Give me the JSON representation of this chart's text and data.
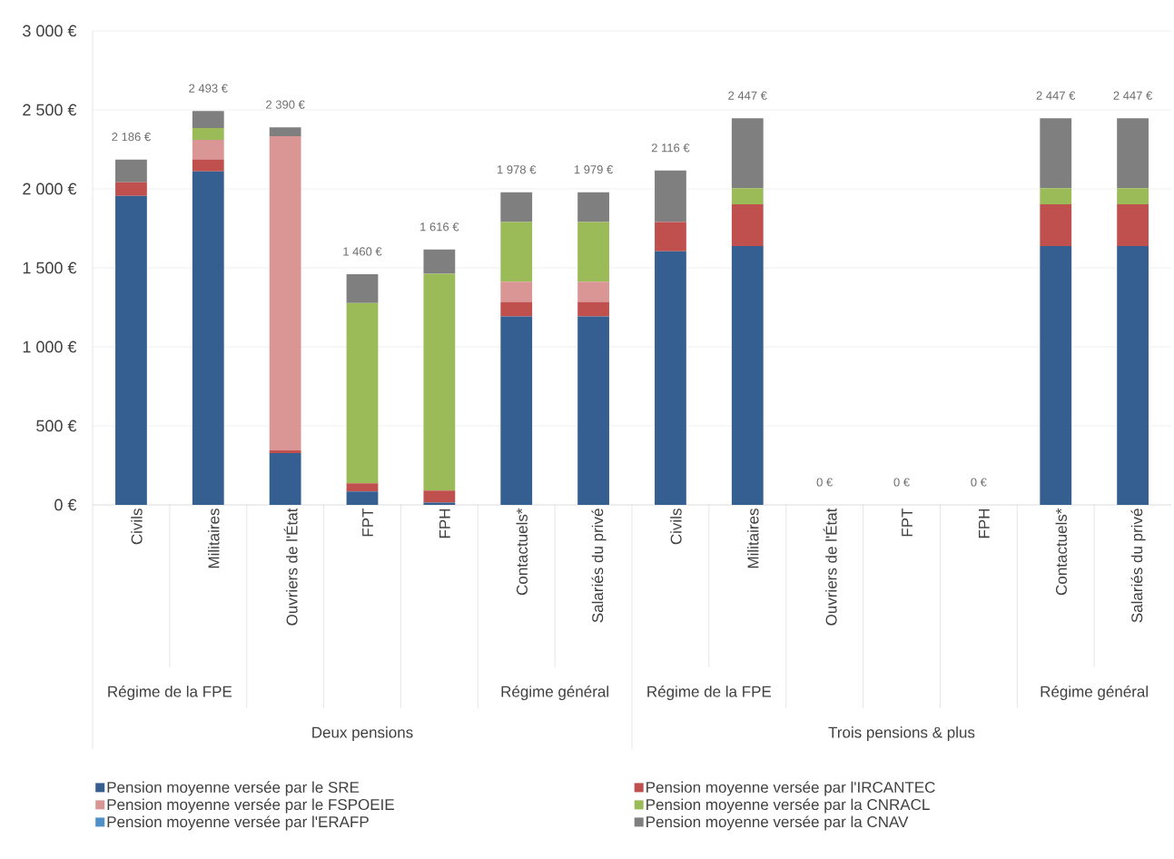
{
  "chart_data": {
    "type": "bar",
    "stacked": true,
    "categories": [
      "Civils",
      "Militaires",
      "Ouvriers de l'État",
      "FPT",
      "FPH",
      "Contactuels*",
      "Salariés du privé",
      "Civils",
      "Militaires",
      "Ouvriers de l'État",
      "FPT",
      "FPH",
      "Contactuels*",
      "Salariés du privé"
    ],
    "series": [
      {
        "name": "Pension moyenne versée par le SRE",
        "color": "#355f91",
        "values": [
          1956,
          2110,
          328,
          85,
          15,
          1192,
          1192,
          1605,
          1638,
          0,
          0,
          0,
          1638,
          1638
        ]
      },
      {
        "name": "Pension moyenne versée par l'IRCANTEC",
        "color": "#c0504d",
        "values": [
          85,
          77,
          18,
          51,
          75,
          93,
          93,
          185,
          265,
          0,
          0,
          0,
          265,
          265
        ]
      },
      {
        "name": "Pension moyenne versée par le FSPOEIE",
        "color": "#d99694",
        "values": [
          0,
          123,
          1987,
          0,
          0,
          128,
          128,
          0,
          0,
          0,
          0,
          0,
          0,
          0
        ]
      },
      {
        "name": "Pension moyenne versée par la CNRACL",
        "color": "#9bbb59",
        "values": [
          0,
          75,
          0,
          1141,
          1372,
          377,
          377,
          0,
          101,
          0,
          0,
          0,
          101,
          101
        ]
      },
      {
        "name": "Pension moyenne versée par l'ERAFP",
        "color": "#4f90c8",
        "values": [
          null,
          null,
          null,
          null,
          null,
          null,
          null,
          null,
          null,
          null,
          null,
          null,
          null,
          null
        ]
      },
      {
        "name": "Pension moyenne versée par la CNAV",
        "color": "#7f7f7f",
        "values": [
          145,
          108,
          57,
          183,
          154,
          188,
          189,
          326,
          443,
          0,
          0,
          0,
          443,
          443
        ]
      }
    ],
    "totals": [
      "2 186 €",
      "2 493 €",
      "2 390 €",
      "1 460 €",
      "1 616 €",
      "1 978 €",
      "1 979 €",
      "2 116 €",
      "2 447 €",
      "0 €",
      "0 €",
      "0 €",
      "2 447 €",
      "2 447 €"
    ],
    "ylim": [
      0,
      3000
    ],
    "yticks": [
      {
        "value": 0,
        "label": "0 €"
      },
      {
        "value": 500,
        "label": "500 €"
      },
      {
        "value": 1000,
        "label": "1 000 €"
      },
      {
        "value": 1500,
        "label": "1 500 €"
      },
      {
        "value": 2000,
        "label": "2 000 €"
      },
      {
        "value": 2500,
        "label": "2 500 €"
      },
      {
        "value": 3000,
        "label": "3 000 €"
      }
    ],
    "grid": "y",
    "legend": "bottom",
    "annotations": [
      "Régime de la FPE",
      "Régime général",
      "Régime de la FPE",
      "Régime général",
      "Deux pensions",
      "Trois pensions & plus"
    ]
  }
}
